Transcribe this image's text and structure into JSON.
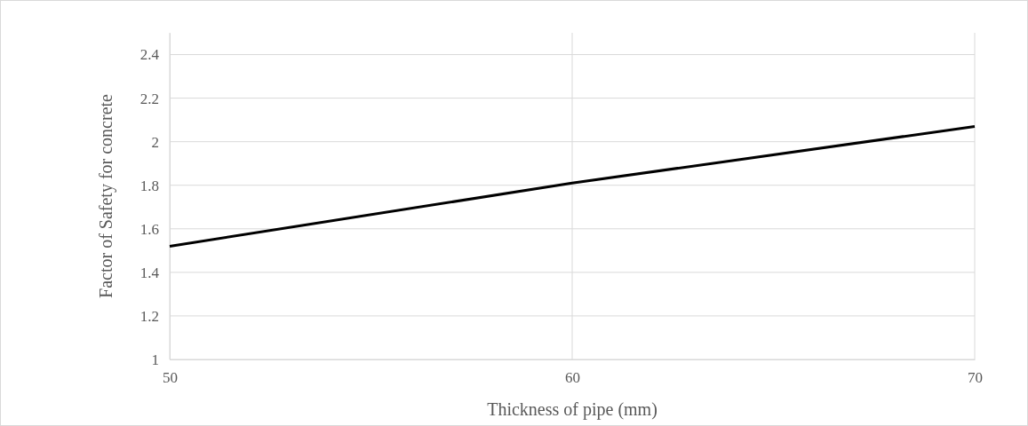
{
  "chart_data": {
    "type": "line",
    "xlabel": "Thickness of pipe (mm)",
    "ylabel": "Factor of Safety for concrete",
    "x": [
      50,
      60,
      70
    ],
    "series": [
      {
        "color": "#000000",
        "values": [
          1.52,
          1.81,
          2.07
        ]
      }
    ],
    "xlim": [
      50,
      70
    ],
    "xticks": [
      50,
      60,
      70
    ],
    "ylim": [
      1,
      2.5
    ],
    "yticks": [
      1,
      1.2,
      1.4,
      1.6,
      1.8,
      2,
      2.2,
      2.4
    ],
    "grid": true,
    "marker": "none",
    "line_style": "solid"
  }
}
